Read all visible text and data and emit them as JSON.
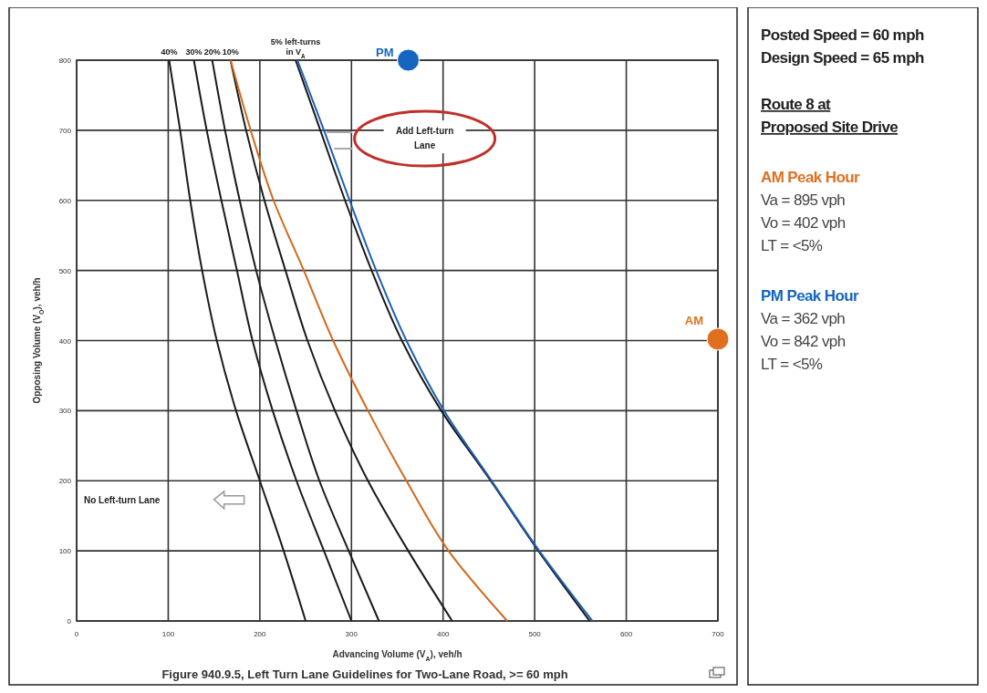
{
  "chart_data": {
    "type": "line",
    "title": "Figure 940.9.5, Left Turn Lane Guidelines for Two-Lane Road, >= 60 mph",
    "xlabel": "Advancing Volume (V$_{A}$), veh/h",
    "ylabel": "Opposing Volume (V$_{O}$), veh/h",
    "xlim": [
      0,
      700
    ],
    "ylim": [
      0,
      800
    ],
    "xticks": [
      0,
      100,
      200,
      300,
      400,
      500,
      600,
      700
    ],
    "yticks": [
      0,
      100,
      200,
      300,
      400,
      500,
      600,
      700,
      800
    ],
    "grid": true,
    "marker": "none",
    "line_style": "solid",
    "series": [
      {
        "name": "40%",
        "color": "#1a1a1a",
        "x": [
          101,
          113,
          124,
          137,
          153,
          174,
          200,
          226,
          250
        ],
        "values": [
          800,
          700,
          600,
          500,
          400,
          300,
          200,
          100,
          0
        ]
      },
      {
        "name": "30%",
        "color": "#1a1a1a",
        "x": [
          128,
          142,
          158,
          175,
          192,
          214,
          240,
          270,
          300
        ],
        "values": [
          800,
          700,
          600,
          500,
          400,
          300,
          200,
          100,
          0
        ]
      },
      {
        "name": "20%",
        "color": "#1a1a1a",
        "x": [
          148,
          162,
          178,
          196,
          217,
          240,
          265,
          297,
          330
        ],
        "values": [
          800,
          700,
          600,
          500,
          400,
          300,
          200,
          100,
          0
        ]
      },
      {
        "name": "10%",
        "color": "#1a1a1a",
        "x": [
          168,
          185,
          205,
          228,
          252,
          282,
          318,
          362,
          410
        ],
        "values": [
          800,
          700,
          600,
          500,
          400,
          300,
          200,
          100,
          0
        ]
      },
      {
        "color": "#d2691e",
        "x": [
          168,
          190,
          215,
          248,
          280,
          318,
          360,
          406,
          470
        ],
        "values": [
          800,
          700,
          600,
          500,
          400,
          300,
          200,
          100,
          0
        ]
      },
      {
        "name": "5% left-turns in V$_{A}$",
        "color": "#1a1a1a",
        "x": [
          239,
          266,
          293,
          322,
          355,
          398,
          452,
          504,
          560
        ],
        "values": [
          800,
          700,
          600,
          500,
          400,
          300,
          200,
          100,
          0
        ]
      },
      {
        "color": "#1f5fb4",
        "x": [
          241,
          270,
          298,
          327,
          360,
          401,
          453,
          505,
          563
        ],
        "values": [
          800,
          700,
          600,
          500,
          400,
          300,
          200,
          100,
          0
        ]
      },
      {
        "name": "PM",
        "type": "scatter",
        "marker": "circle",
        "color": "#1565c0",
        "x": [
          362
        ],
        "values": [
          800
        ]
      },
      {
        "name": "AM",
        "type": "scatter",
        "marker": "circle",
        "color": "#e07020",
        "x": [
          700
        ],
        "values": [
          402
        ]
      }
    ],
    "annotations": [
      "No Left-turn Lane",
      "Add Left-turn Lane",
      "Posted Speed = 60 mph",
      "Design Speed = 65 mph",
      "Route 8 at",
      "Proposed Site Drive",
      "AM Peak Hour",
      "Va = 895 vph",
      "Vo = 402 vph",
      "LT = <5%",
      "PM Peak Hour",
      "Va = 362 vph",
      "Vo = 842 vph",
      "LT = <5%"
    ]
  }
}
